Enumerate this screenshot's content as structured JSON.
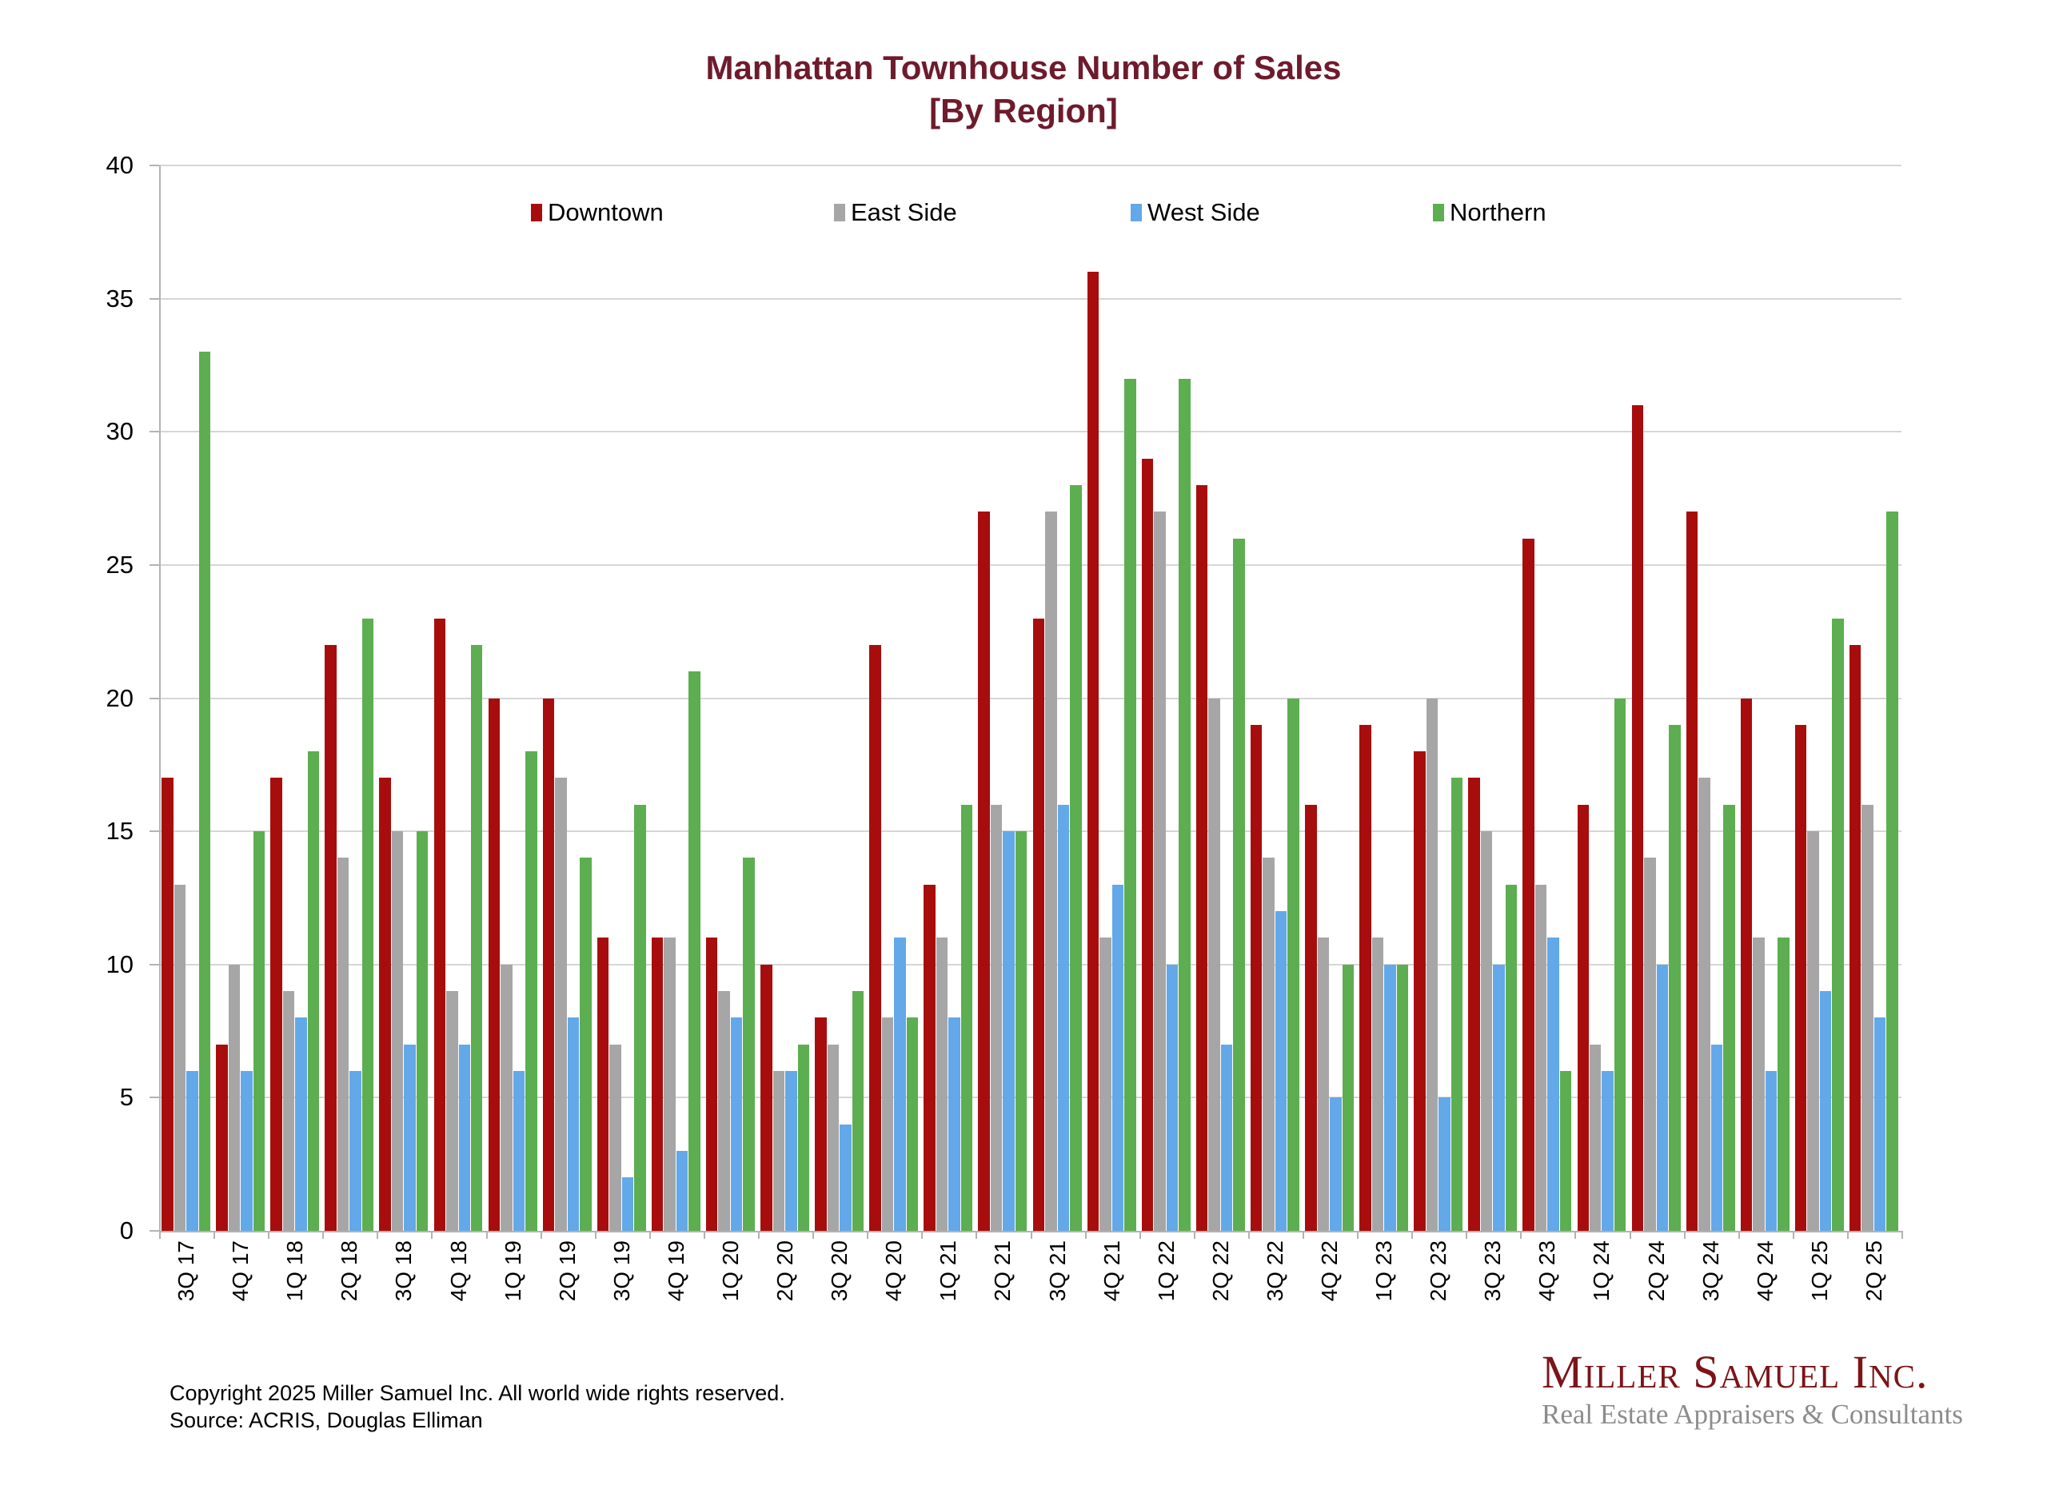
{
  "title": {
    "line1": "Manhattan Townhouse Number of Sales",
    "line2": "[By Region]",
    "color": "#6E1B2C"
  },
  "chart_data": {
    "type": "bar",
    "title": "Manhattan Townhouse Number of Sales [By Region]",
    "xlabel": "",
    "ylabel": "",
    "ylim": [
      0,
      40
    ],
    "ytick_step": 5,
    "grid": true,
    "legend_position": "top",
    "categories": [
      "3Q 17",
      "4Q 17",
      "1Q 18",
      "2Q 18",
      "3Q 18",
      "4Q 18",
      "1Q 19",
      "2Q 19",
      "3Q 19",
      "4Q 19",
      "1Q 20",
      "2Q 20",
      "3Q 20",
      "4Q 20",
      "1Q 21",
      "2Q 21",
      "3Q 21",
      "4Q 21",
      "1Q 22",
      "2Q 22",
      "3Q 22",
      "4Q 22",
      "1Q 23",
      "2Q 23",
      "3Q 23",
      "4Q 23",
      "1Q 24",
      "2Q 24",
      "3Q 24",
      "4Q 24",
      "1Q 25",
      "2Q 25"
    ],
    "series": [
      {
        "name": "Downtown",
        "color": "#A80D0D",
        "values": [
          17,
          7,
          17,
          22,
          17,
          23,
          20,
          20,
          11,
          11,
          11,
          10,
          8,
          22,
          13,
          27,
          23,
          36,
          29,
          28,
          19,
          16,
          19,
          18,
          17,
          26,
          16,
          31,
          27,
          20,
          19,
          22
        ]
      },
      {
        "name": "East Side",
        "color": "#A6A6A6",
        "values": [
          13,
          10,
          9,
          14,
          15,
          9,
          10,
          17,
          7,
          11,
          9,
          6,
          7,
          8,
          11,
          16,
          27,
          11,
          27,
          20,
          14,
          11,
          11,
          20,
          15,
          13,
          7,
          14,
          17,
          11,
          15,
          16
        ]
      },
      {
        "name": "West Side",
        "color": "#63A8E8",
        "values": [
          6,
          6,
          8,
          6,
          7,
          7,
          6,
          8,
          2,
          3,
          8,
          6,
          4,
          11,
          8,
          15,
          16,
          13,
          10,
          7,
          12,
          5,
          10,
          5,
          10,
          11,
          6,
          10,
          7,
          6,
          9,
          8
        ]
      },
      {
        "name": "Northern",
        "color": "#5CAE50",
        "values": [
          33,
          15,
          18,
          23,
          15,
          22,
          18,
          14,
          16,
          21,
          14,
          7,
          9,
          8,
          16,
          15,
          28,
          32,
          32,
          26,
          20,
          10,
          10,
          17,
          13,
          6,
          20,
          19,
          16,
          11,
          23,
          27
        ]
      }
    ]
  },
  "footer": {
    "copyright": "Copyright 2025 Miller Samuel Inc.  All world wide rights reserved.",
    "source": "Source: ACRIS, Douglas Elliman"
  },
  "logo": {
    "name": "Miller Samuel Inc.",
    "tagline": "Real Estate Appraisers & Consultants",
    "name_color": "#7C1418",
    "tagline_color": "#8C8C8C"
  }
}
